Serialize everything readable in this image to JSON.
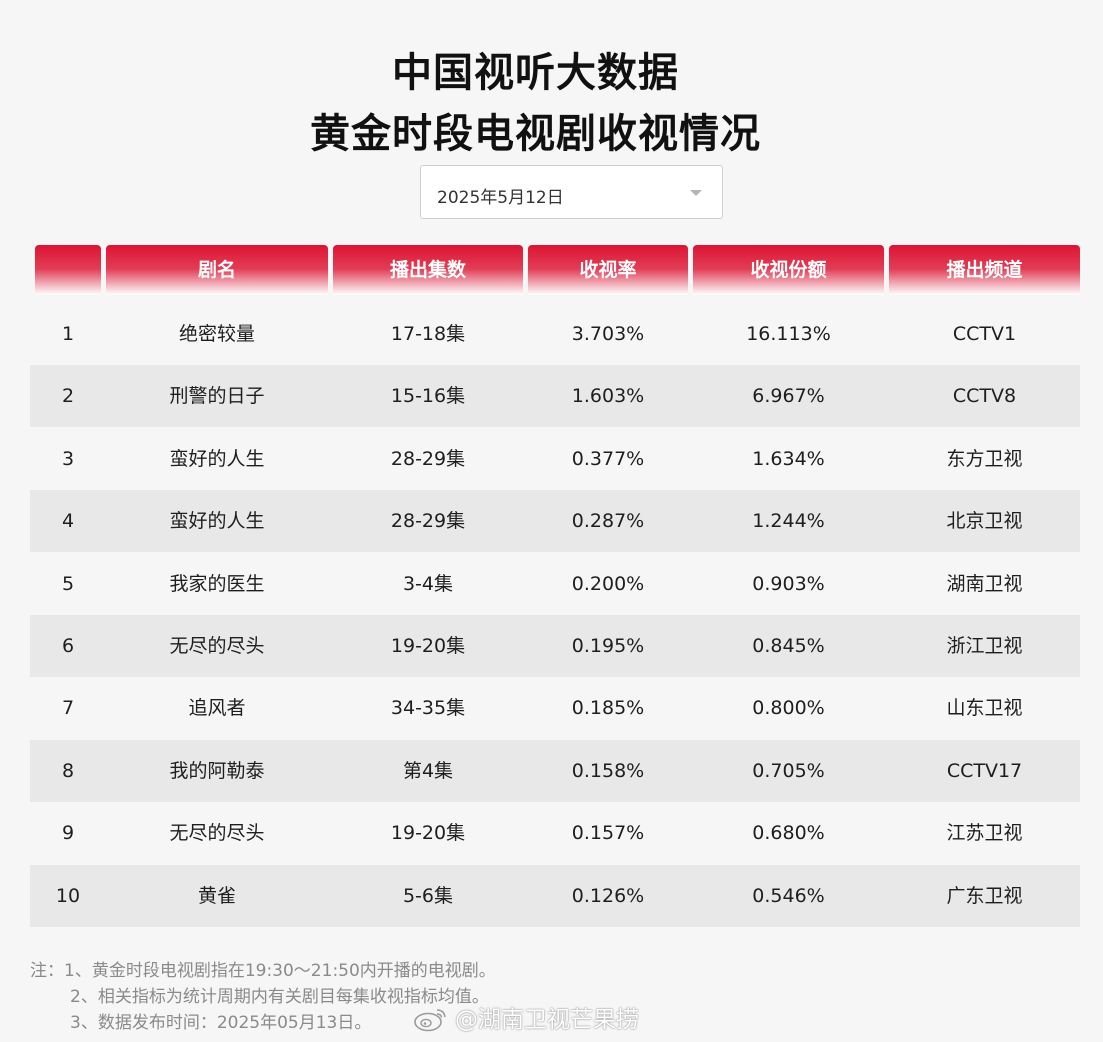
{
  "title": {
    "line1": "中国视听大数据",
    "line2": "黄金时段电视剧收视情况"
  },
  "date_select": {
    "value": "2025年5月12日",
    "icon": "chevron-down-icon"
  },
  "table": {
    "headers": [
      "",
      "剧名",
      "播出集数",
      "收视率",
      "收视份额",
      "播出频道"
    ],
    "rows": [
      [
        "1",
        "绝密较量",
        "17-18集",
        "3.703%",
        "16.113%",
        "CCTV1"
      ],
      [
        "2",
        "刑警的日子",
        "15-16集",
        "1.603%",
        "6.967%",
        "CCTV8"
      ],
      [
        "3",
        "蛮好的人生",
        "28-29集",
        "0.377%",
        "1.634%",
        "东方卫视"
      ],
      [
        "4",
        "蛮好的人生",
        "28-29集",
        "0.287%",
        "1.244%",
        "北京卫视"
      ],
      [
        "5",
        "我家的医生",
        "3-4集",
        "0.200%",
        "0.903%",
        "湖南卫视"
      ],
      [
        "6",
        "无尽的尽头",
        "19-20集",
        "0.195%",
        "0.845%",
        "浙江卫视"
      ],
      [
        "7",
        "追风者",
        "34-35集",
        "0.185%",
        "0.800%",
        "山东卫视"
      ],
      [
        "8",
        "我的阿勒泰",
        "第4集",
        "0.158%",
        "0.705%",
        "CCTV17"
      ],
      [
        "9",
        "无尽的尽头",
        "19-20集",
        "0.157%",
        "0.680%",
        "江苏卫视"
      ],
      [
        "10",
        "黄雀",
        "5-6集",
        "0.126%",
        "0.546%",
        "广东卫视"
      ]
    ]
  },
  "notes": {
    "line1": "注：1、黄金时段电视剧指在19:30～21:50内开播的电视剧。",
    "line2": "2、相关指标为统计周期内有关剧目每集收视指标均值。",
    "line3": "3、数据发布时间：2025年05月13日。"
  },
  "watermark": {
    "text": "@湖南卫视芒果捞",
    "icon": "weibo-logo-icon"
  },
  "colors": {
    "header_red": "#dc1433",
    "alt_row": "#e8e8e8",
    "background": "#f6f6f6"
  }
}
